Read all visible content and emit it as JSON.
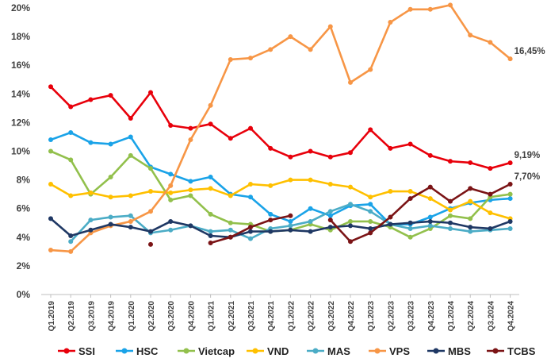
{
  "chart_data": {
    "type": "line",
    "title": "",
    "xlabel": "",
    "ylabel": "",
    "ylim": [
      0,
      20
    ],
    "yticks": [
      0,
      2,
      4,
      6,
      8,
      10,
      12,
      14,
      16,
      18,
      20
    ],
    "ytick_suffix": "%",
    "grid": false,
    "legend_position": "bottom",
    "x": [
      "Q1.2019",
      "Q2.2019",
      "Q3.2019",
      "Q4.2019",
      "Q1.2020",
      "Q2.2020",
      "Q3.2020",
      "Q4.2020",
      "Q1.2021",
      "Q2.2021",
      "Q3.2021",
      "Q4.2021",
      "Q1.2022",
      "Q2.2022",
      "Q3.2022",
      "Q4.2022",
      "Q1.2023",
      "Q2.2023",
      "Q3.2023",
      "Q4.2023",
      "Q1.2024",
      "Q2.2024",
      "Q3.2024",
      "Q4.2024"
    ],
    "series": [
      {
        "name": "SSI",
        "color": "#e8000b",
        "values": [
          14.5,
          13.1,
          13.6,
          13.9,
          12.3,
          14.1,
          11.8,
          11.6,
          11.9,
          10.9,
          11.6,
          10.2,
          9.6,
          10.0,
          9.6,
          9.9,
          11.5,
          10.2,
          10.5,
          9.7,
          9.3,
          9.2,
          8.8,
          9.19
        ]
      },
      {
        "name": "HSC",
        "color": "#1aa3e8",
        "values": [
          10.8,
          11.3,
          10.6,
          10.5,
          11.0,
          8.9,
          8.4,
          7.9,
          8.2,
          7.0,
          6.8,
          5.6,
          5.1,
          6.0,
          5.5,
          6.2,
          6.3,
          4.9,
          4.9,
          5.4,
          6.0,
          6.4,
          6.6,
          6.7
        ]
      },
      {
        "name": "Vietcap",
        "color": "#92c04c",
        "values": [
          10.0,
          9.4,
          7.0,
          8.2,
          9.7,
          8.8,
          6.6,
          6.9,
          5.6,
          5.0,
          4.9,
          4.4,
          4.5,
          4.9,
          4.5,
          5.1,
          5.1,
          4.7,
          4.0,
          4.6,
          5.5,
          5.3,
          6.8,
          7.0
        ]
      },
      {
        "name": "VND",
        "color": "#ffc000",
        "values": [
          7.7,
          6.9,
          7.1,
          6.8,
          6.9,
          7.2,
          7.1,
          7.3,
          7.4,
          6.9,
          7.7,
          7.6,
          8.0,
          8.0,
          7.7,
          7.5,
          6.8,
          7.2,
          7.2,
          6.7,
          5.9,
          6.5,
          5.7,
          5.3
        ]
      },
      {
        "name": "MAS",
        "color": "#4bacc6",
        "values": [
          null,
          3.7,
          5.2,
          5.4,
          5.5,
          4.3,
          4.5,
          4.8,
          4.4,
          4.5,
          3.9,
          4.6,
          4.8,
          5.1,
          5.8,
          6.3,
          5.8,
          4.9,
          4.6,
          4.8,
          4.6,
          4.4,
          4.5,
          4.6
        ]
      },
      {
        "name": "VPS",
        "color": "#f79646",
        "values": [
          3.1,
          3.0,
          4.3,
          4.8,
          5.1,
          5.8,
          7.6,
          10.8,
          13.2,
          16.4,
          16.5,
          17.1,
          18.0,
          17.1,
          18.7,
          14.8,
          15.7,
          19.0,
          19.9,
          19.9,
          20.2,
          18.1,
          17.6,
          16.45
        ]
      },
      {
        "name": "MBS",
        "color": "#1f3864",
        "values": [
          5.3,
          4.1,
          4.5,
          4.9,
          4.7,
          4.4,
          5.1,
          4.8,
          4.1,
          4.0,
          4.4,
          4.4,
          4.5,
          4.4,
          4.7,
          4.8,
          4.6,
          4.9,
          5.0,
          5.1,
          5.0,
          4.7,
          4.6,
          5.1
        ]
      },
      {
        "name": "TCBS",
        "color": "#7b1416",
        "values": [
          null,
          null,
          null,
          null,
          null,
          3.5,
          null,
          null,
          3.6,
          4.0,
          4.7,
          5.2,
          5.5,
          null,
          5.2,
          3.7,
          4.3,
          5.4,
          6.7,
          7.5,
          6.5,
          7.4,
          7.0,
          7.7
        ]
      }
    ],
    "annotations": [
      {
        "series": "VPS",
        "text": "16,45%"
      },
      {
        "series": "SSI",
        "text": "9,19%"
      },
      {
        "series": "TCBS",
        "text": "7,70%"
      }
    ]
  }
}
